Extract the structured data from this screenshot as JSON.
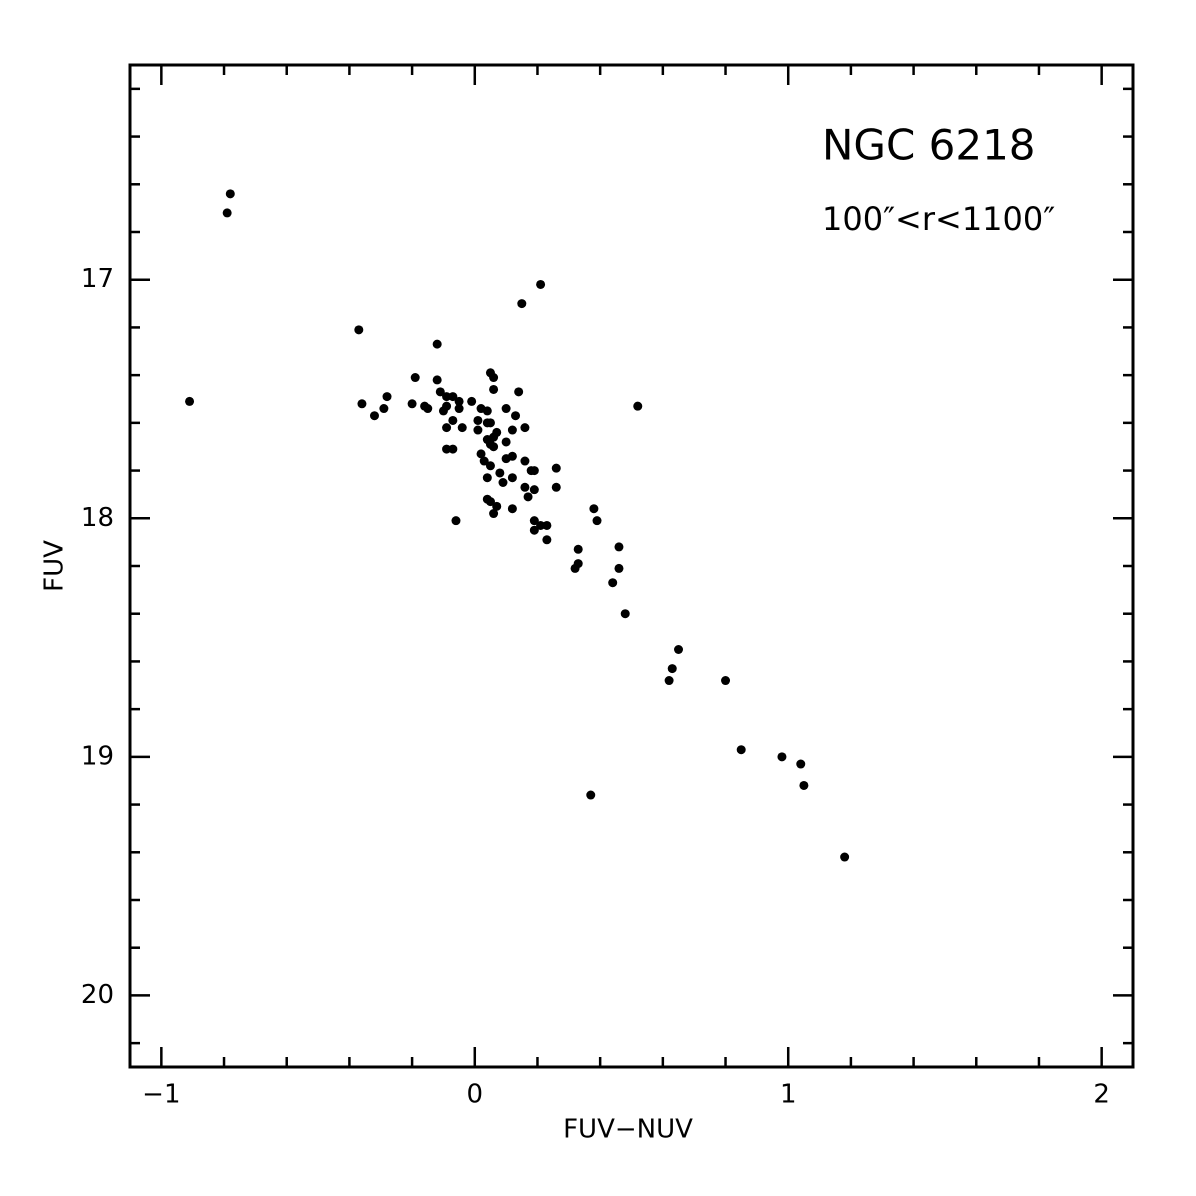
{
  "chart_data": {
    "type": "scatter",
    "x_label": "FUV−NUV",
    "y_label": "FUV",
    "annotations": [
      "NGC 6218",
      "100″<r<1100″"
    ],
    "color": "#000000",
    "xlim": [
      -1.1,
      2.1
    ],
    "ylim": [
      20.3,
      16.1
    ],
    "xticks": [
      {
        "value": -1,
        "label": "−1"
      },
      0,
      1,
      2
    ],
    "yticks": [
      17,
      18,
      19,
      20
    ],
    "xminorticks": [
      -0.8,
      -0.6,
      -0.4,
      -0.2,
      0.2,
      0.4,
      0.6,
      0.8,
      1.2,
      1.4,
      1.6,
      1.8
    ],
    "yminorticks": [
      16.2,
      16.4,
      16.6,
      16.8,
      17.2,
      17.4,
      17.6,
      17.8,
      18.2,
      18.4,
      18.6,
      18.8,
      19.2,
      19.4,
      19.6,
      19.8,
      20.2
    ],
    "x": [
      -0.78,
      -0.79,
      -0.91,
      0.21,
      0.15,
      -0.37,
      -0.12,
      -0.19,
      -0.12,
      0.05,
      0.06,
      0.06,
      -0.28,
      -0.36,
      -0.29,
      -0.32,
      -0.2,
      -0.16,
      -0.15,
      -0.11,
      -0.09,
      -0.07,
      -0.05,
      -0.09,
      -0.1,
      -0.05,
      -0.01,
      -0.07,
      -0.09,
      -0.04,
      -0.09,
      -0.07,
      -0.06,
      0.14,
      0.1,
      0.13,
      0.02,
      0.04,
      0.01,
      0.04,
      0.05,
      0.01,
      0.07,
      0.06,
      0.12,
      0.16,
      0.04,
      0.05,
      0.06,
      0.1,
      0.02,
      0.03,
      0.05,
      0.12,
      0.1,
      0.08,
      0.04,
      0.09,
      0.12,
      0.16,
      0.18,
      0.19,
      0.26,
      0.16,
      0.17,
      0.19,
      0.26,
      0.04,
      0.05,
      0.07,
      0.06,
      0.12,
      0.19,
      0.21,
      0.19,
      0.23,
      0.23,
      0.38,
      0.39,
      0.33,
      0.33,
      0.32,
      0.46,
      0.46,
      0.44,
      0.48,
      0.52,
      0.65,
      0.63,
      0.62,
      0.8,
      0.85,
      0.98,
      1.04,
      1.05,
      0.37,
      1.18
    ],
    "values": [
      16.64,
      16.72,
      17.51,
      17.02,
      17.1,
      17.21,
      17.27,
      17.41,
      17.42,
      17.39,
      17.41,
      17.46,
      17.49,
      17.52,
      17.54,
      17.57,
      17.52,
      17.53,
      17.54,
      17.47,
      17.49,
      17.49,
      17.51,
      17.53,
      17.55,
      17.54,
      17.51,
      17.59,
      17.62,
      17.62,
      17.71,
      17.71,
      18.01,
      17.47,
      17.54,
      17.57,
      17.54,
      17.55,
      17.59,
      17.6,
      17.6,
      17.63,
      17.64,
      17.66,
      17.63,
      17.62,
      17.67,
      17.69,
      17.7,
      17.68,
      17.73,
      17.76,
      17.78,
      17.74,
      17.75,
      17.81,
      17.83,
      17.85,
      17.83,
      17.76,
      17.8,
      17.8,
      17.79,
      17.87,
      17.91,
      17.88,
      17.87,
      17.92,
      17.93,
      17.95,
      17.98,
      17.96,
      18.01,
      18.03,
      18.05,
      18.03,
      18.09,
      17.96,
      18.01,
      18.13,
      18.19,
      18.21,
      18.12,
      18.21,
      18.27,
      18.4,
      17.53,
      18.55,
      18.63,
      18.68,
      18.68,
      18.97,
      19.0,
      19.03,
      19.12,
      19.16,
      19.42
    ]
  }
}
